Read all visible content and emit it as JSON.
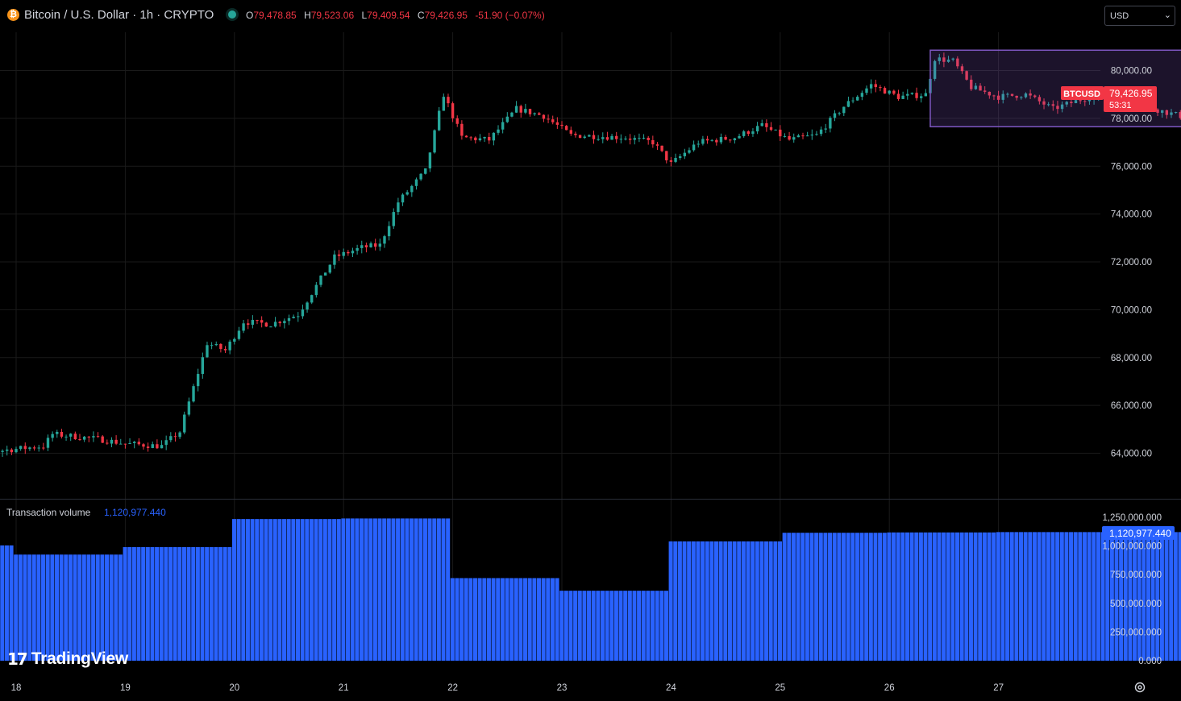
{
  "header": {
    "symbol_title": "Bitcoin / U.S. Dollar · 1h · CRYPTO",
    "ohlc": [
      {
        "key": "O",
        "value": "79,478.85"
      },
      {
        "key": "H",
        "value": "79,523.06"
      },
      {
        "key": "L",
        "value": "79,409.54"
      },
      {
        "key": "C",
        "value": "79,426.95"
      }
    ],
    "change": "-51.90 (−0.07%)",
    "currency": "USD"
  },
  "price_badge": {
    "symbol": "BTCUSD",
    "price": "79,426.95",
    "countdown": "53:31"
  },
  "volume_badge": "1,120,977.440",
  "volume_panel": {
    "label": "Transaction volume",
    "value": "1,120,977.440"
  },
  "branding": {
    "logo_text": "TradingView",
    "logo_mark": "17"
  },
  "colors": {
    "up": "#26a69a",
    "down": "#f23645",
    "volume": "#2962ff",
    "box": "#7e57c2",
    "grid": "#1a1a1a"
  },
  "icons": {
    "currency_chevron": "chevron-down-icon",
    "settings": "gear-icon",
    "coin": "bitcoin-icon"
  },
  "chart_data": {
    "type": "candlestick",
    "interval": "1h",
    "y_ticks": [
      "80,000.00",
      "78,000.00",
      "76,000.00",
      "74,000.00",
      "72,000.00",
      "70,000.00",
      "68,000.00",
      "66,000.00",
      "64,000.00"
    ],
    "y_tick_values": [
      80000,
      78000,
      76000,
      74000,
      72000,
      70000,
      68000,
      66000,
      64000
    ],
    "ylim": [
      62200,
      81600
    ],
    "x_ticks": [
      "18",
      "19",
      "20",
      "21",
      "22",
      "23",
      "24",
      "25",
      "26",
      "27"
    ],
    "price_path": [
      {
        "t": 0,
        "p": 64300
      },
      {
        "t": 12,
        "p": 64100
      },
      {
        "t": 22,
        "p": 64300
      },
      {
        "t": 24,
        "p": 64800
      },
      {
        "t": 34,
        "p": 64600
      },
      {
        "t": 40,
        "p": 64400
      },
      {
        "t": 48,
        "p": 64300
      },
      {
        "t": 52,
        "p": 64900
      },
      {
        "t": 58,
        "p": 68600
      },
      {
        "t": 62,
        "p": 68300
      },
      {
        "t": 66,
        "p": 69500
      },
      {
        "t": 72,
        "p": 69400
      },
      {
        "t": 78,
        "p": 69800
      },
      {
        "t": 86,
        "p": 72200
      },
      {
        "t": 92,
        "p": 72600
      },
      {
        "t": 96,
        "p": 72700
      },
      {
        "t": 100,
        "p": 74500
      },
      {
        "t": 106,
        "p": 75800
      },
      {
        "t": 110,
        "p": 79000
      },
      {
        "t": 114,
        "p": 77200
      },
      {
        "t": 120,
        "p": 77100
      },
      {
        "t": 126,
        "p": 78400
      },
      {
        "t": 132,
        "p": 78100
      },
      {
        "t": 138,
        "p": 77300
      },
      {
        "t": 150,
        "p": 77200
      },
      {
        "t": 156,
        "p": 77000
      },
      {
        "t": 160,
        "p": 76100
      },
      {
        "t": 166,
        "p": 77000
      },
      {
        "t": 174,
        "p": 77200
      },
      {
        "t": 180,
        "p": 77700
      },
      {
        "t": 186,
        "p": 77100
      },
      {
        "t": 192,
        "p": 77300
      },
      {
        "t": 198,
        "p": 78500
      },
      {
        "t": 204,
        "p": 79400
      },
      {
        "t": 210,
        "p": 78900
      },
      {
        "t": 216,
        "p": 79000
      },
      {
        "t": 218,
        "p": 80500
      },
      {
        "t": 222,
        "p": 80400
      },
      {
        "t": 226,
        "p": 79300
      },
      {
        "t": 232,
        "p": 78900
      },
      {
        "t": 238,
        "p": 79000
      },
      {
        "t": 244,
        "p": 78400
      },
      {
        "t": 252,
        "p": 78900
      },
      {
        "t": 260,
        "p": 78800
      },
      {
        "t": 268,
        "p": 78300
      },
      {
        "t": 272,
        "p": 78100
      },
      {
        "t": 280,
        "p": 78700
      },
      {
        "t": 290,
        "p": 78800
      },
      {
        "t": 294,
        "p": 79400
      },
      {
        "t": 297,
        "p": 79800
      },
      {
        "t": 300,
        "p": 79500
      },
      {
        "t": 301,
        "p": 79427
      }
    ],
    "candle_count": 302,
    "range_box": {
      "from_t": 216,
      "to_t": 291,
      "high": 80850,
      "low": 77650
    },
    "volume": {
      "y_ticks": [
        "1,250,000.000",
        "1,000,000.000",
        "750,000.000",
        "500,000.000",
        "250,000.000",
        "0.000"
      ],
      "y_tick_values": [
        1250000,
        1000000,
        750000,
        500000,
        250000,
        0
      ],
      "ylim": [
        0,
        1250000
      ],
      "daily_levels": [
        {
          "day": "18",
          "value": 925000
        },
        {
          "day": "19",
          "value": 990000
        },
        {
          "day": "20",
          "value": 1235000
        },
        {
          "day": "21",
          "value": 1240000
        },
        {
          "day": "22",
          "value": 720000
        },
        {
          "day": "23",
          "value": 610000
        },
        {
          "day": "24",
          "value": 1040000
        },
        {
          "day": "25",
          "value": 1115000
        },
        {
          "day": "26",
          "value": 1118000
        },
        {
          "day": "27",
          "value": 1120977
        }
      ],
      "first_bars_value": 1005000
    }
  }
}
